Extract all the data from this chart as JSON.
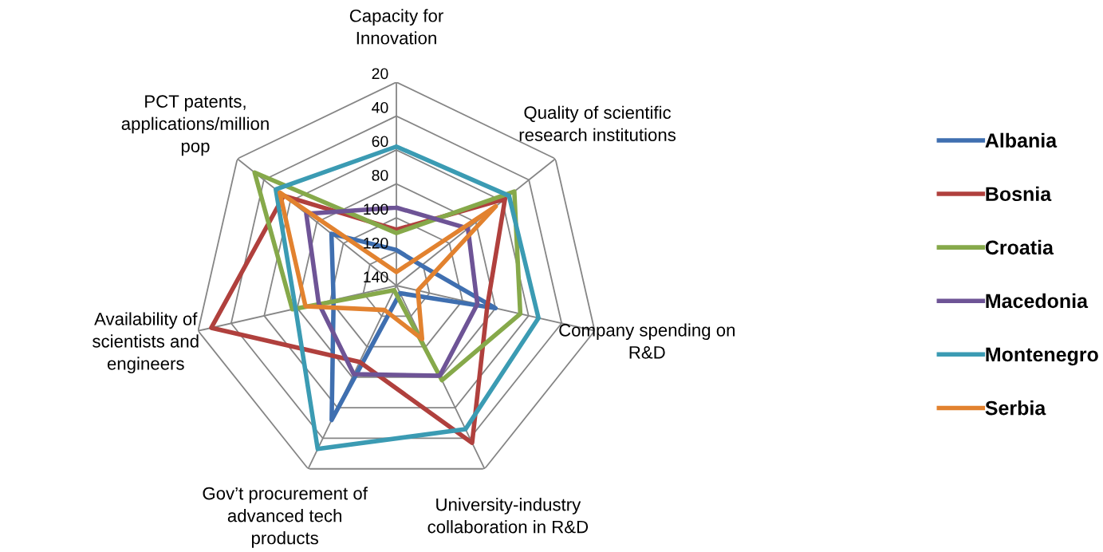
{
  "chart_data": {
    "type": "radar",
    "categories": [
      "Capacity for\nInnovation",
      "Quality of scientific\nresearch institutions",
      "Company spending on\nR&D",
      "University-industry\ncollaboration in R&D",
      "Gov’t procurement of\nadvanced tech\nproducts",
      "Availability of\nscientists and\nengineers",
      "PCT patents,\napplications/million\npop"
    ],
    "ylim": [
      140,
      20
    ],
    "yticks": [
      20,
      40,
      60,
      80,
      100,
      120,
      140
    ],
    "grid": true,
    "legend": "right",
    "line_style": "solid",
    "marker": "none",
    "series": [
      {
        "name": "Albania",
        "color": "#3f6fb0",
        "values": [
          119,
          121,
          80,
          135,
          52,
          102,
          91
        ]
      },
      {
        "name": "Bosnia",
        "color": "#b0403d",
        "values": [
          107,
          58,
          85,
          37,
          90,
          28,
          55
        ]
      },
      {
        "name": "Croatia",
        "color": "#86a94a",
        "values": [
          109,
          51,
          65,
          78,
          137,
          77,
          33
        ]
      },
      {
        "name": "Macedonia",
        "color": "#6e5496",
        "values": [
          94,
          86,
          91,
          81,
          82,
          93,
          72
        ]
      },
      {
        "name": "Montenegro",
        "color": "#3b9bb3",
        "values": [
          58,
          55,
          54,
          46,
          33,
          79,
          49
        ]
      },
      {
        "name": "Serbia",
        "color": "#e2822f",
        "values": [
          132,
          65,
          127,
          105,
          124,
          85,
          52
        ]
      }
    ]
  }
}
